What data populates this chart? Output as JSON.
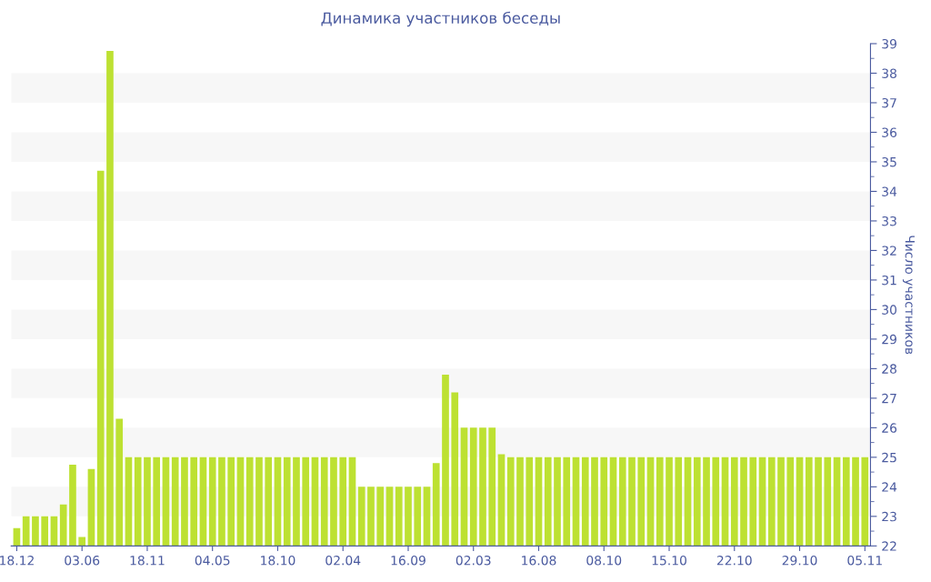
{
  "chart_data": {
    "type": "bar",
    "title": "Динамика участников беседы",
    "y2label": "Число участников",
    "categories": [
      "18.12",
      null,
      null,
      null,
      null,
      null,
      null,
      "03.06",
      null,
      null,
      null,
      null,
      null,
      null,
      "18.11",
      null,
      null,
      null,
      null,
      null,
      null,
      "04.05",
      null,
      null,
      null,
      null,
      null,
      null,
      "18.10",
      null,
      null,
      null,
      null,
      null,
      null,
      "02.04",
      null,
      null,
      null,
      null,
      null,
      null,
      "16.09",
      null,
      null,
      null,
      null,
      null,
      null,
      "02.03",
      null,
      null,
      null,
      null,
      null,
      null,
      "16.08",
      null,
      null,
      null,
      null,
      null,
      null,
      "08.10",
      null,
      null,
      null,
      null,
      null,
      null,
      "15.10",
      null,
      null,
      null,
      null,
      null,
      null,
      "22.10",
      null,
      null,
      null,
      null,
      null,
      null,
      "29.10",
      null,
      null,
      null,
      null,
      null,
      null,
      "05.11"
    ],
    "series": [
      {
        "color": "#bde132",
        "axis": "y2",
        "values": [
          22.6,
          23,
          23,
          23,
          23,
          23.4,
          24.75,
          22.3,
          24.6,
          34.7,
          38.75,
          26.3,
          25,
          25,
          25,
          25,
          25,
          25,
          25,
          25,
          25,
          25,
          25,
          25,
          25,
          25,
          25,
          25,
          25,
          25,
          25,
          25,
          25,
          25,
          25,
          25,
          25,
          24,
          24,
          24,
          24,
          24,
          24,
          24,
          24,
          24.8,
          27.8,
          27.2,
          26,
          26,
          26,
          26,
          25.1,
          25,
          25,
          25,
          25,
          25,
          25,
          25,
          25,
          25,
          25,
          25,
          25,
          25,
          25,
          25,
          25,
          25,
          25,
          25,
          25,
          25,
          25,
          25,
          25,
          25,
          25,
          25,
          25,
          25,
          25,
          25,
          25,
          25,
          25,
          25,
          25,
          25,
          25,
          25
        ]
      }
    ],
    "y2lim": [
      22,
      39
    ],
    "y2ticks": [
      22,
      23,
      24,
      25,
      26,
      27,
      28,
      29,
      30,
      31,
      32,
      33,
      34,
      35,
      36,
      37,
      38,
      39
    ],
    "bands": [
      {
        "axis": "y2",
        "from": 23,
        "to": 24,
        "color": "#f7f7f7"
      },
      {
        "axis": "y2",
        "from": 25,
        "to": 26,
        "color": "#f7f7f7"
      },
      {
        "axis": "y2",
        "from": 27,
        "to": 28,
        "color": "#f7f7f7"
      },
      {
        "axis": "y2",
        "from": 29,
        "to": 30,
        "color": "#f7f7f7"
      },
      {
        "axis": "y2",
        "from": 31,
        "to": 32,
        "color": "#f7f7f7"
      },
      {
        "axis": "y2",
        "from": 33,
        "to": 34,
        "color": "#f7f7f7"
      },
      {
        "axis": "y2",
        "from": 35,
        "to": 36,
        "color": "#f7f7f7"
      },
      {
        "axis": "y2",
        "from": 37,
        "to": 38,
        "color": "#f7f7f7"
      }
    ]
  }
}
